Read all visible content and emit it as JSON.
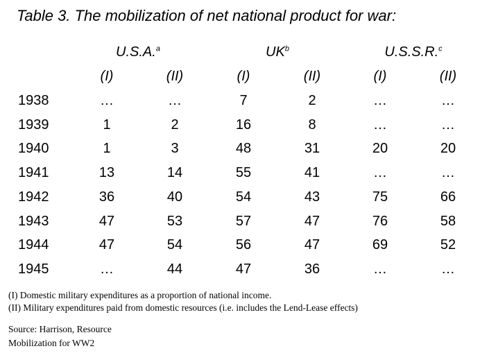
{
  "title": "Table 3. The mobilization of net national product for war:",
  "countries": [
    {
      "name": "U.S.A.",
      "sup": "a"
    },
    {
      "name": "UK",
      "sup": "b"
    },
    {
      "name": "U.S.S.R.",
      "sup": "c"
    }
  ],
  "sub_headers": [
    "(I)",
    "(II)",
    "(I)",
    "(II)",
    "(I)",
    "(II)"
  ],
  "rows": [
    {
      "year": "1938",
      "cells": [
        "…",
        "…",
        "7",
        "2",
        "…",
        "…"
      ]
    },
    {
      "year": "1939",
      "cells": [
        "1",
        "2",
        "16",
        "8",
        "…",
        "…"
      ]
    },
    {
      "year": "1940",
      "cells": [
        "1",
        "3",
        "48",
        "31",
        "20",
        "20"
      ]
    },
    {
      "year": "1941",
      "cells": [
        "13",
        "14",
        "55",
        "41",
        "…",
        "…"
      ]
    },
    {
      "year": "1942",
      "cells": [
        "36",
        "40",
        "54",
        "43",
        "75",
        "66"
      ]
    },
    {
      "year": "1943",
      "cells": [
        "47",
        "53",
        "57",
        "47",
        "76",
        "58"
      ]
    },
    {
      "year": "1944",
      "cells": [
        "47",
        "54",
        "56",
        "47",
        "69",
        "52"
      ]
    },
    {
      "year": "1945",
      "cells": [
        "…",
        "44",
        "47",
        "36",
        "…",
        "…"
      ]
    }
  ],
  "notes": [
    "(I) Domestic military expenditures as a proportion of national income.",
    "(II) Military expenditures paid from domestic resources (i.e. includes the Lend-Lease effects)"
  ],
  "source_lines": [
    "Source: Harrison, Resource",
    "Mobilization for WW2"
  ]
}
